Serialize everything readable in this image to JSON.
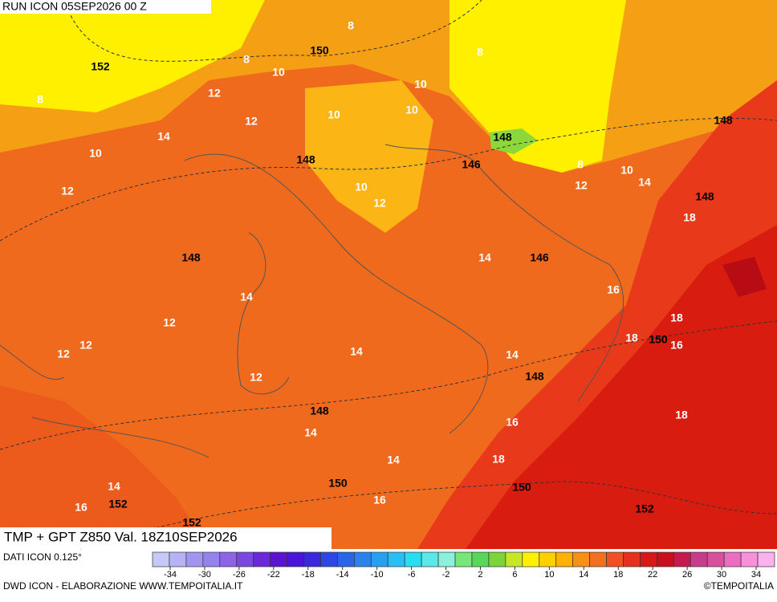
{
  "header": {
    "run": "RUN ICON 05SEP2026 00 Z"
  },
  "map": {
    "title": "TMP + GPT Z850 Val. 18Z10SEP2026",
    "temperature_labels": [
      "8",
      "8",
      "8",
      "8",
      "10",
      "10",
      "10",
      "10",
      "12",
      "12",
      "14",
      "10",
      "8",
      "10",
      "14",
      "12",
      "12",
      "10",
      "12",
      "18",
      "14",
      "16",
      "14",
      "12",
      "18",
      "12",
      "12",
      "14",
      "14",
      "18",
      "16",
      "12",
      "16",
      "18",
      "14",
      "14",
      "18",
      "14",
      "16",
      "16"
    ],
    "height_labels": [
      "152",
      "150",
      "148",
      "148",
      "148",
      "146",
      "148",
      "148",
      "146",
      "150",
      "148",
      "148",
      "150",
      "150",
      "152",
      "152",
      "152"
    ]
  },
  "legend": {
    "source": "DATI ICON 0.125°",
    "colors": [
      "#c8c8f8",
      "#b4b4f4",
      "#a096f0",
      "#9682ec",
      "#8c64e6",
      "#7c46e0",
      "#6a28d8",
      "#5a14d0",
      "#4a14d6",
      "#3a28dc",
      "#2e46e2",
      "#2a64e8",
      "#2a82ee",
      "#28a0f2",
      "#28c0f4",
      "#28dcf2",
      "#5ae8e8",
      "#8cf0dc",
      "#78e678",
      "#58d858",
      "#7ad43a",
      "#c8e628",
      "#fff000",
      "#ffd000",
      "#ffb000",
      "#f89018",
      "#f47020",
      "#f05024",
      "#e43020",
      "#d81818",
      "#c8101c",
      "#c81850",
      "#c83c8c",
      "#d8509c",
      "#ec6cc0",
      "#f890dc",
      "#fcb0ec"
    ],
    "ticks": [
      -34,
      -30,
      -26,
      -22,
      -18,
      -14,
      -10,
      -6,
      -2,
      2,
      6,
      10,
      14,
      18,
      22,
      26,
      30,
      34
    ]
  },
  "footer": {
    "credit": "DWD ICON - ELABORAZIONE WWW.TEMPOITALIA.IT",
    "copyright": "©TEMPOITALIA"
  }
}
